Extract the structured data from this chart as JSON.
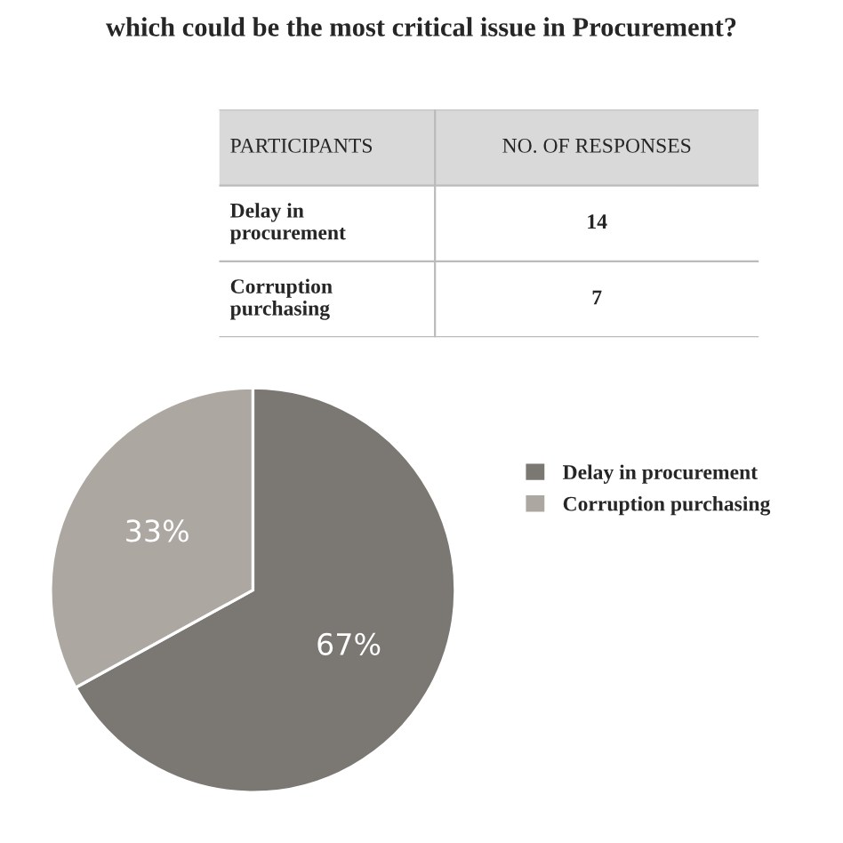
{
  "chart_data": {
    "type": "pie",
    "title": "which could be the most critical issue in Procurement?",
    "categories": [
      "Delay in procurement",
      "Corruption purchasing"
    ],
    "values": [
      67,
      33
    ],
    "colors": [
      "#7b7772",
      "#aca7a1"
    ],
    "value_labels": [
      "67%",
      "33%"
    ],
    "annotations": [
      "PARTICIPANTS",
      "NO. OF RESPONSES",
      "14",
      "7"
    ],
    "legend": "right"
  }
}
